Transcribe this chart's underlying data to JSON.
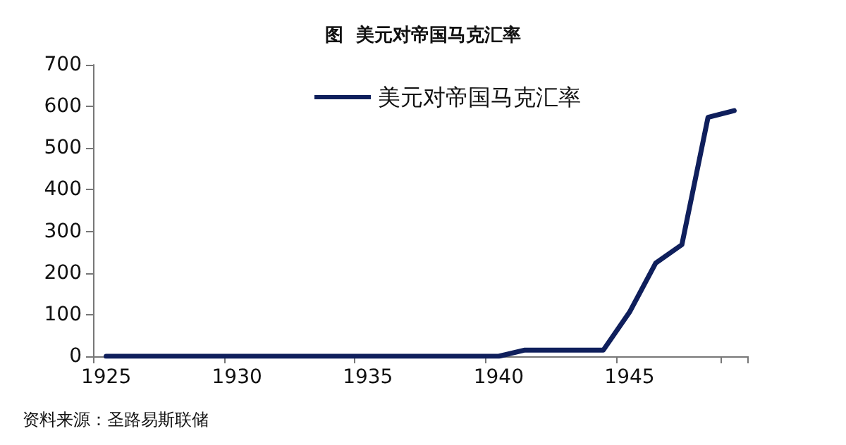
{
  "chart_data": {
    "type": "line",
    "title": "图  美元对帝国马克汇率",
    "categories": [
      "1925",
      null,
      null,
      null,
      null,
      "1930",
      null,
      null,
      null,
      null,
      "1935",
      null,
      null,
      null,
      null,
      "1940",
      null,
      null,
      null,
      null,
      "1945",
      null,
      null,
      null,
      null
    ],
    "series": [
      {
        "name": "美元对帝国马克汇率",
        "color": "#0f1f5c",
        "values": [
          0,
          0,
          0,
          0,
          0,
          0,
          0,
          0,
          0,
          0,
          0,
          0,
          0,
          0,
          0,
          0,
          15,
          15,
          15,
          15,
          106,
          224,
          268,
          574,
          590
        ]
      }
    ],
    "ylim": [
      0,
      700
    ],
    "yticks": [
      0,
      100,
      200,
      300,
      400,
      500,
      600,
      700
    ],
    "grid": false,
    "legend": "top left",
    "marker": "none",
    "line_style": "solid",
    "annotations": [
      "资料来源：圣路易斯联储"
    ]
  }
}
